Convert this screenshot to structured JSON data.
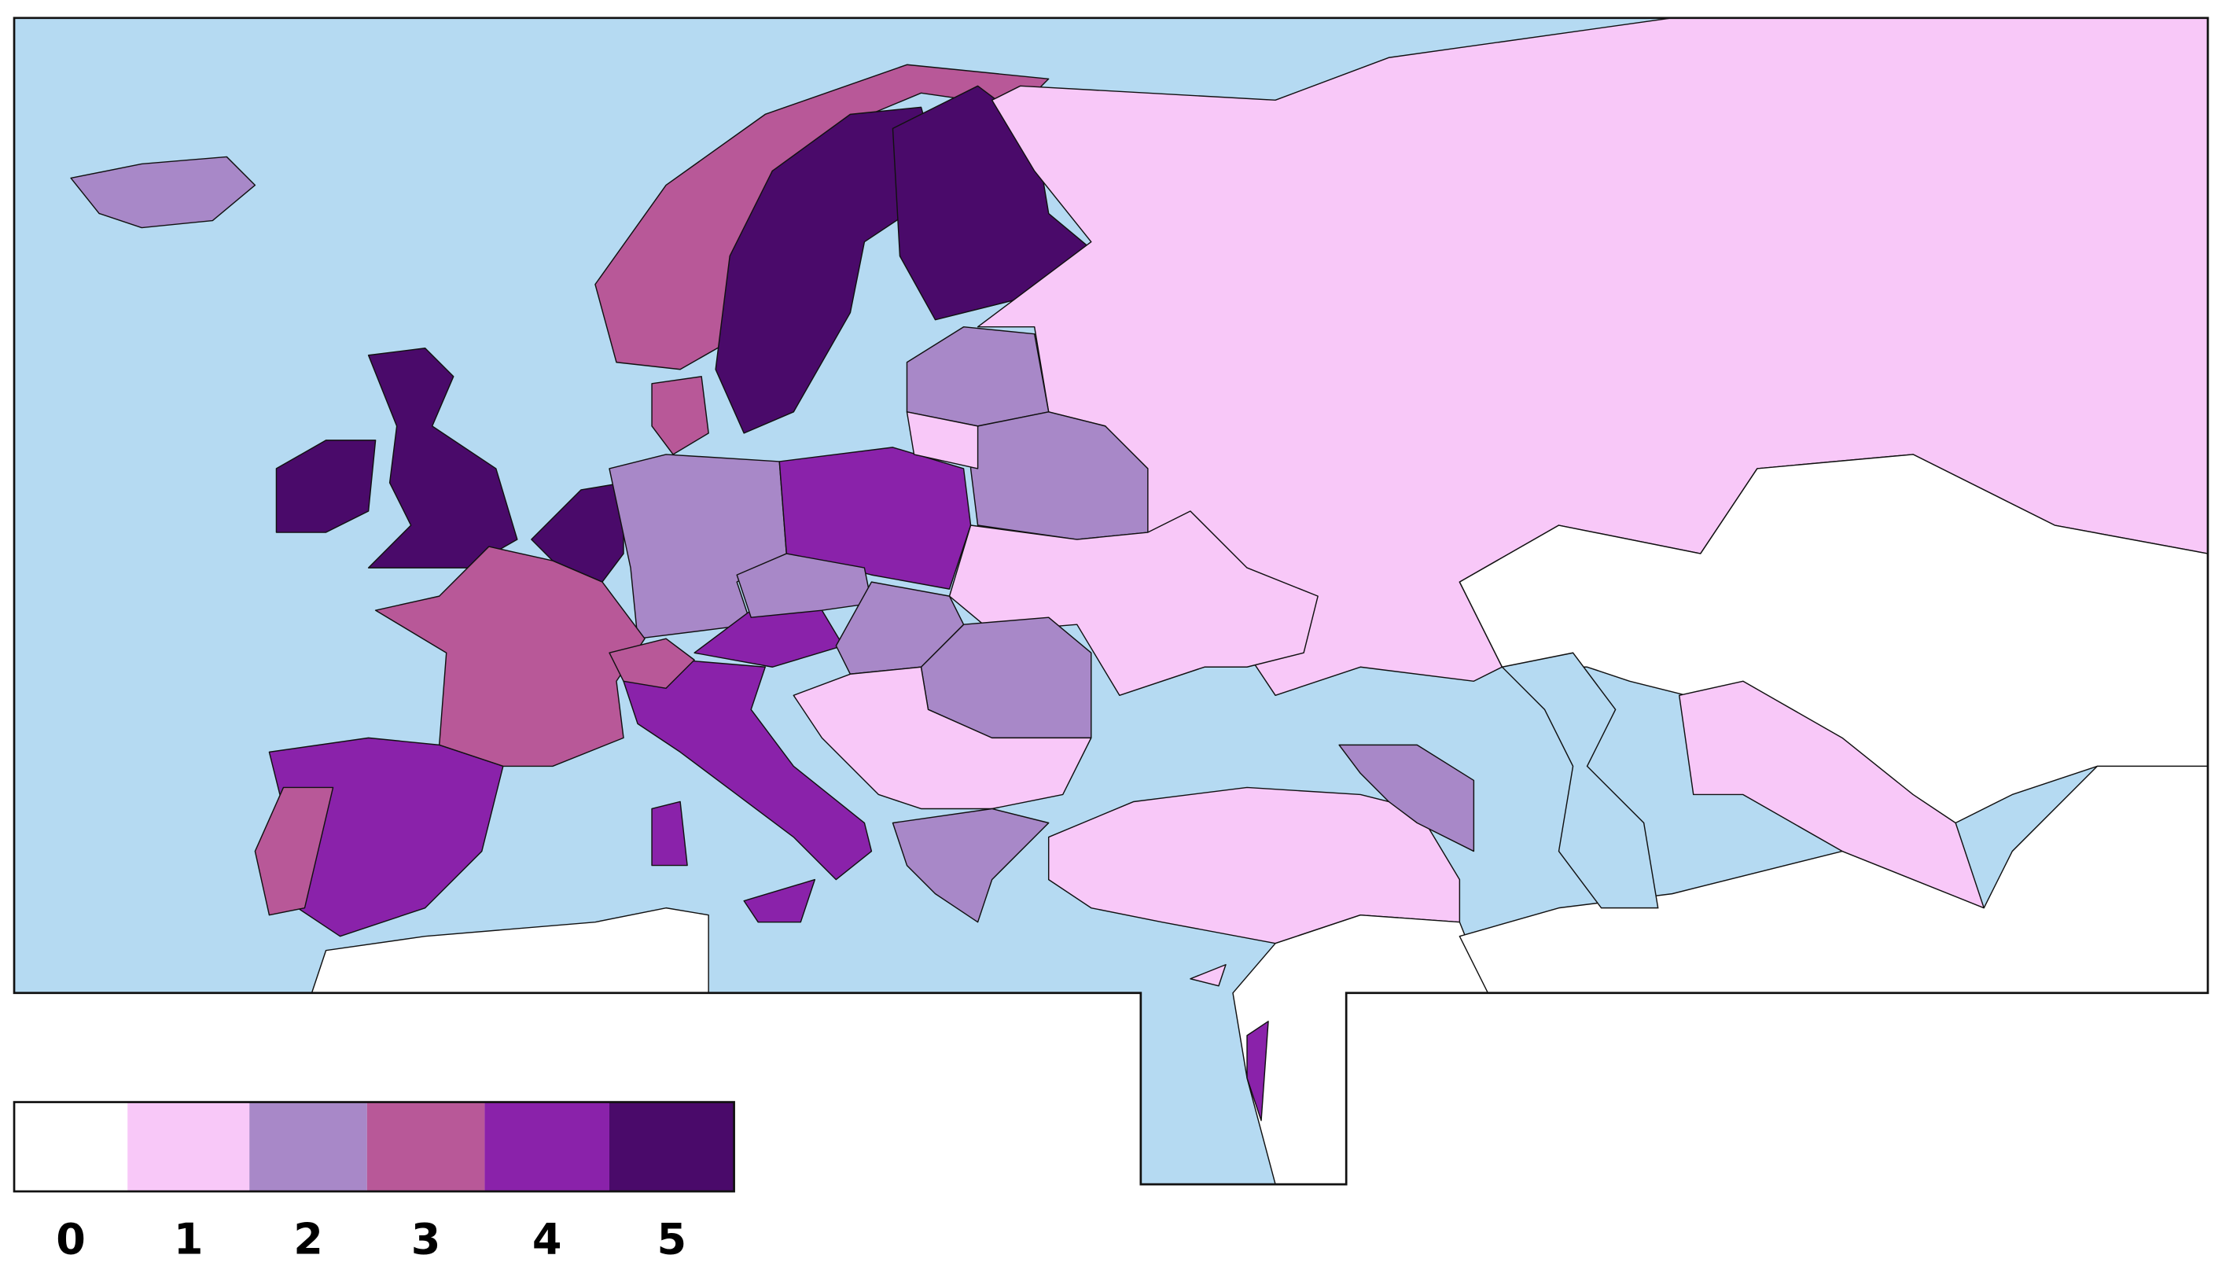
{
  "legend": [
    {
      "value": 0,
      "color": "#ffffff"
    },
    {
      "value": 1,
      "color": "#f8c8f8"
    },
    {
      "value": 2,
      "color": "#a888c8"
    },
    {
      "value": 3,
      "color": "#b85898"
    },
    {
      "value": 4,
      "color": "#8a22aa"
    },
    {
      "value": 5,
      "color": "#4a0a6a"
    }
  ],
  "regions": [
    {
      "value": 2
    },
    {
      "value": 5
    },
    {
      "value": 5
    },
    {
      "value": 3
    },
    {
      "value": 5
    },
    {
      "value": 5
    },
    {
      "value": 1
    },
    {
      "value": 3
    },
    {
      "value": 5
    },
    {
      "value": 2
    },
    {
      "value": 4
    },
    {
      "value": 3
    },
    {
      "value": 4
    },
    {
      "value": 3
    },
    {
      "value": 4
    },
    {
      "value": 3
    },
    {
      "value": 4
    },
    {
      "value": 2
    },
    {
      "value": 2
    },
    {
      "value": 2
    },
    {
      "value": 1
    },
    {
      "value": 2
    },
    {
      "value": 2
    },
    {
      "value": 1
    },
    {
      "value": 2
    },
    {
      "value": 1
    },
    {
      "value": 0
    },
    {
      "value": 1
    },
    {
      "value": 0
    },
    {
      "value": 0
    },
    {
      "value": 4
    },
    {
      "value": 2
    },
    {
      "value": 4
    },
    {
      "value": 4
    },
    {
      "value": 1
    },
    {
      "value": 1
    },
    {
      "value": 0
    }
  ]
}
